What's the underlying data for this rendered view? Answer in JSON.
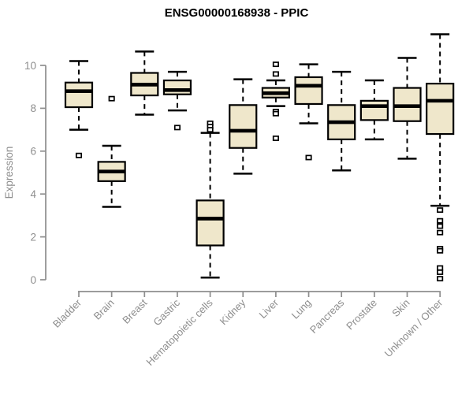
{
  "chart_data": {
    "type": "boxplot",
    "title": "ENSG00000168938 - PPIC",
    "ylabel": "Expression",
    "xlabel": "",
    "y_ticks": [
      0,
      2,
      4,
      6,
      8,
      10
    ],
    "ylim": [
      0,
      11.6
    ],
    "grid": false,
    "legend": "none",
    "series": [
      {
        "name": "Bladder",
        "whisker_low": 7.0,
        "q1": 8.05,
        "median": 8.8,
        "q3": 9.2,
        "whisker_high": 10.2,
        "outliers": [
          5.8
        ]
      },
      {
        "name": "Brain",
        "whisker_low": 3.4,
        "q1": 4.6,
        "median": 5.05,
        "q3": 5.5,
        "whisker_high": 6.25,
        "outliers": [
          8.45
        ]
      },
      {
        "name": "Breast",
        "whisker_low": 7.7,
        "q1": 8.6,
        "median": 9.1,
        "q3": 9.65,
        "whisker_high": 10.65,
        "outliers": []
      },
      {
        "name": "Gastric",
        "whisker_low": 7.9,
        "q1": 8.65,
        "median": 8.85,
        "q3": 9.3,
        "whisker_high": 9.7,
        "outliers": [
          7.1
        ]
      },
      {
        "name": "Hematopoietic cells",
        "whisker_low": 0.1,
        "q1": 1.6,
        "median": 2.85,
        "q3": 3.7,
        "whisker_high": 6.85,
        "outliers": [
          7.3,
          7.15,
          7.0
        ]
      },
      {
        "name": "Kidney",
        "whisker_low": 4.95,
        "q1": 6.15,
        "median": 6.95,
        "q3": 8.15,
        "whisker_high": 9.35,
        "outliers": []
      },
      {
        "name": "Liver",
        "whisker_low": 8.1,
        "q1": 8.5,
        "median": 8.7,
        "q3": 8.95,
        "whisker_high": 9.3,
        "outliers": [
          10.05,
          9.6,
          7.85,
          7.75,
          6.6
        ]
      },
      {
        "name": "Lung",
        "whisker_low": 7.3,
        "q1": 8.2,
        "median": 9.05,
        "q3": 9.45,
        "whisker_high": 10.05,
        "outliers": [
          5.7
        ]
      },
      {
        "name": "Pancreas",
        "whisker_low": 5.1,
        "q1": 6.55,
        "median": 7.35,
        "q3": 8.15,
        "whisker_high": 9.7,
        "outliers": []
      },
      {
        "name": "Prostate",
        "whisker_low": 6.55,
        "q1": 7.45,
        "median": 8.1,
        "q3": 8.35,
        "whisker_high": 9.3,
        "outliers": []
      },
      {
        "name": "Skin",
        "whisker_low": 5.65,
        "q1": 7.4,
        "median": 8.1,
        "q3": 8.95,
        "whisker_high": 10.35,
        "outliers": []
      },
      {
        "name": "Unknown / Other",
        "whisker_low": 3.45,
        "q1": 6.8,
        "median": 8.35,
        "q3": 9.15,
        "whisker_high": 11.45,
        "outliers": [
          3.25,
          2.75,
          2.5,
          2.2,
          1.45,
          1.35,
          0.55,
          0.35,
          0.05
        ]
      }
    ],
    "colors": {
      "background": "#ffffff",
      "box_fill": "#EFE7CB",
      "box_border": "#000000",
      "median": "#000000",
      "whisker": "#000000",
      "outlier_fill": "#ffffff",
      "outlier_border": "#000000",
      "axis": "#8e8e8e",
      "axis_text": "#8e8e8e",
      "title": "#000000"
    }
  }
}
